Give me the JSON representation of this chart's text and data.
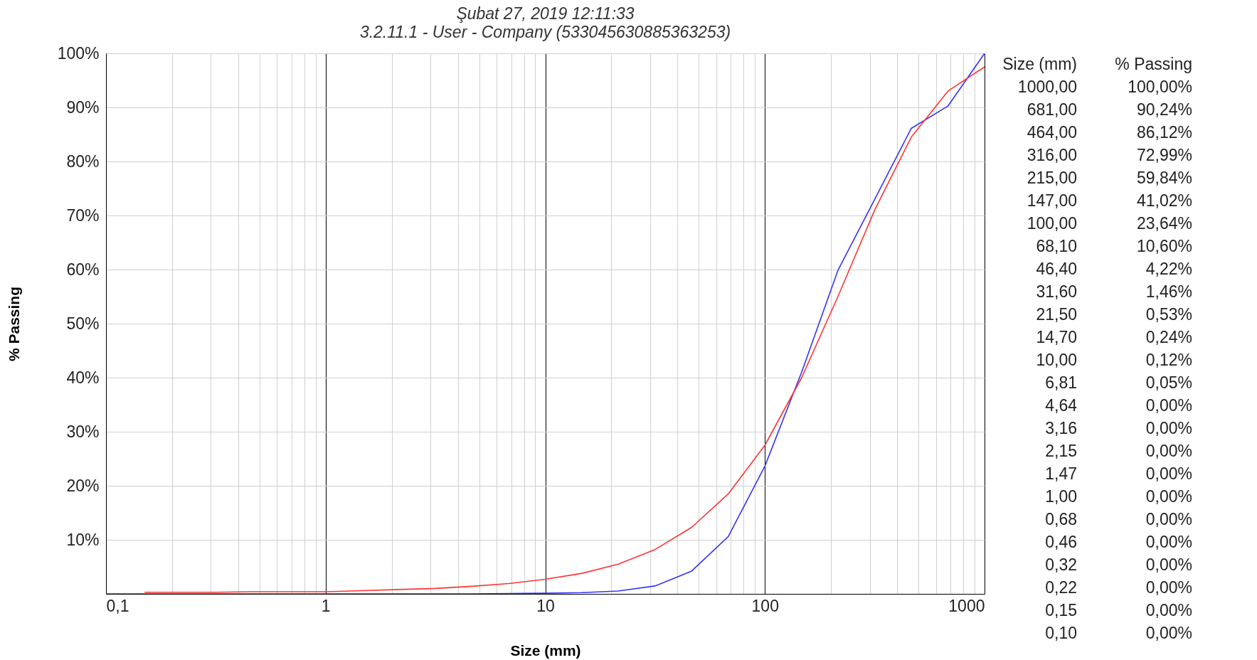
{
  "chart_data": {
    "type": "line",
    "title": "Şubat 27, 2019 12:11:33",
    "subtitle": "3.2.11.1  -  User - Company (533045630885363253)",
    "xlabel": "Size (mm)",
    "ylabel": "% Passing",
    "log": "x",
    "grid": true,
    "xlim": [
      0.1,
      1000
    ],
    "ylim": [
      0,
      100
    ],
    "annotations": [
      "Size (mm)",
      "% Passing",
      "1000,00",
      "100,00%",
      "681,00",
      "90,24%",
      "464,00",
      "86,12%",
      "316,00",
      "72,99%",
      "215,00",
      "59,84%",
      "147,00",
      "41,02%",
      "100,00",
      "23,64%",
      "68,10",
      "10,60%",
      "46,40",
      "4,22%",
      "31,60",
      "1,46%",
      "21,50",
      "0,53%",
      "14,70",
      "0,24%",
      "10,00",
      "0,12%",
      "6,81",
      "0,05%",
      "4,64",
      "0,00%",
      "3,16",
      "0,00%",
      "2,15",
      "0,00%",
      "1,47",
      "0,00%",
      "1,00",
      "0,00%",
      "0,68",
      "0,00%",
      "0,46",
      "0,00%",
      "0,32",
      "0,00%",
      "0,22",
      "0,00%",
      "0,15",
      "0,00%",
      "0,10",
      "0,00%"
    ],
    "xticks": [
      {
        "value": 0.1,
        "label": "0,1"
      },
      {
        "value": 0.2,
        "label": null
      },
      {
        "value": 0.3,
        "label": null
      },
      {
        "value": 0.4,
        "label": null
      },
      {
        "value": 0.5,
        "label": null
      },
      {
        "value": 0.6,
        "label": null
      },
      {
        "value": 0.7,
        "label": null
      },
      {
        "value": 0.8,
        "label": null
      },
      {
        "value": 0.9,
        "label": null
      },
      1,
      {
        "value": 2,
        "label": null
      },
      {
        "value": 3,
        "label": null
      },
      {
        "value": 4,
        "label": null
      },
      {
        "value": 5,
        "label": null
      },
      {
        "value": 6,
        "label": null
      },
      {
        "value": 7,
        "label": null
      },
      {
        "value": 8,
        "label": null
      },
      {
        "value": 9,
        "label": null
      },
      10,
      {
        "value": 20,
        "label": null
      },
      {
        "value": 30,
        "label": null
      },
      {
        "value": 40,
        "label": null
      },
      {
        "value": 50,
        "label": null
      },
      {
        "value": 60,
        "label": null
      },
      {
        "value": 70,
        "label": null
      },
      {
        "value": 80,
        "label": null
      },
      {
        "value": 90,
        "label": null
      },
      100,
      {
        "value": 200,
        "label": null
      },
      {
        "value": 300,
        "label": null
      },
      {
        "value": 400,
        "label": null
      },
      {
        "value": 500,
        "label": null
      },
      {
        "value": 600,
        "label": null
      },
      {
        "value": 700,
        "label": null
      },
      {
        "value": 800,
        "label": null
      },
      {
        "value": 900,
        "label": null
      },
      1000
    ],
    "yticks": [
      {
        "value": 10,
        "label": "10%"
      },
      {
        "value": 20,
        "label": "20%"
      },
      {
        "value": 30,
        "label": "30%"
      },
      {
        "value": 40,
        "label": "40%"
      },
      {
        "value": 50,
        "label": "50%"
      },
      {
        "value": 60,
        "label": "60%"
      },
      {
        "value": 70,
        "label": "70%"
      },
      {
        "value": 80,
        "label": "80%"
      },
      {
        "value": 90,
        "label": "90%"
      },
      {
        "value": 100,
        "label": "100%"
      }
    ],
    "series": [
      {
        "color": "#3333ff",
        "x": [
          1000,
          681,
          464,
          316,
          215,
          147,
          100,
          68.1,
          46.4,
          31.6,
          21.5,
          14.7,
          10,
          6.81,
          4.64,
          3.16,
          2.15,
          1.47,
          1,
          0.68,
          0.46,
          0.32,
          0.22,
          0.15,
          0.1
        ],
        "values": [
          100,
          90.24,
          86.12,
          72.99,
          59.84,
          41.02,
          23.64,
          10.6,
          4.22,
          1.46,
          0.53,
          0.24,
          0.12,
          0.05,
          0,
          0,
          0,
          0,
          0,
          0,
          0,
          0,
          0,
          0,
          0
        ]
      },
      {
        "color": "#ff3333",
        "x": [
          0.15,
          0.22,
          0.32,
          0.46,
          0.68,
          1,
          1.47,
          2.15,
          3.16,
          4.64,
          6.81,
          10,
          14.7,
          21.5,
          31.6,
          46.4,
          68.1,
          100,
          147,
          215,
          316,
          464,
          681,
          1000
        ],
        "values": [
          0.3,
          0.3,
          0.3,
          0.4,
          0.4,
          0.4,
          0.6,
          0.8,
          1.0,
          1.4,
          1.9,
          2.7,
          3.8,
          5.5,
          8.2,
          12.3,
          18.5,
          27.5,
          40,
          55,
          71,
          84.5,
          93,
          97.5
        ]
      }
    ]
  }
}
